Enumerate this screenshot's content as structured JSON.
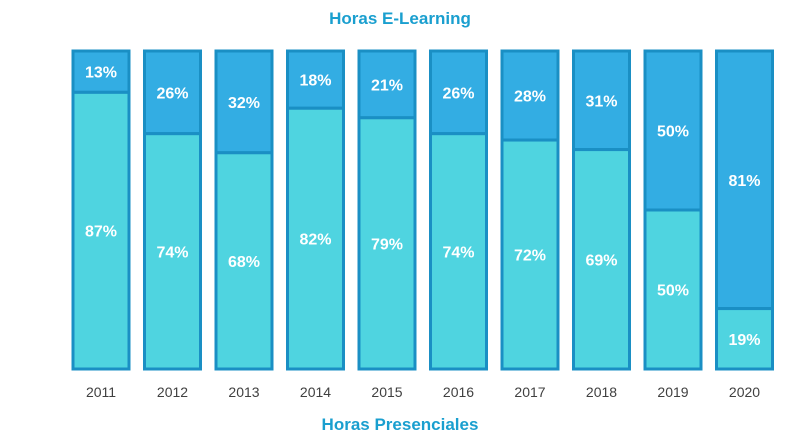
{
  "chart_data": {
    "type": "bar",
    "stacked": true,
    "percent": true,
    "title": "Horas E-Learning",
    "subtitle": "Horas Presenciales",
    "categories": [
      "2011",
      "2012",
      "2013",
      "2014",
      "2015",
      "2016",
      "2017",
      "2018",
      "2019",
      "2020"
    ],
    "series": [
      {
        "values": [
          87,
          74,
          68,
          82,
          79,
          74,
          72,
          69,
          50,
          19
        ],
        "color": "#4fd4e0"
      },
      {
        "values": [
          13,
          26,
          32,
          18,
          21,
          26,
          28,
          31,
          50,
          81
        ],
        "color": "#33ade3"
      }
    ],
    "ylim": [
      0,
      100
    ],
    "grid": false,
    "border_color": "#1a8fc4"
  }
}
